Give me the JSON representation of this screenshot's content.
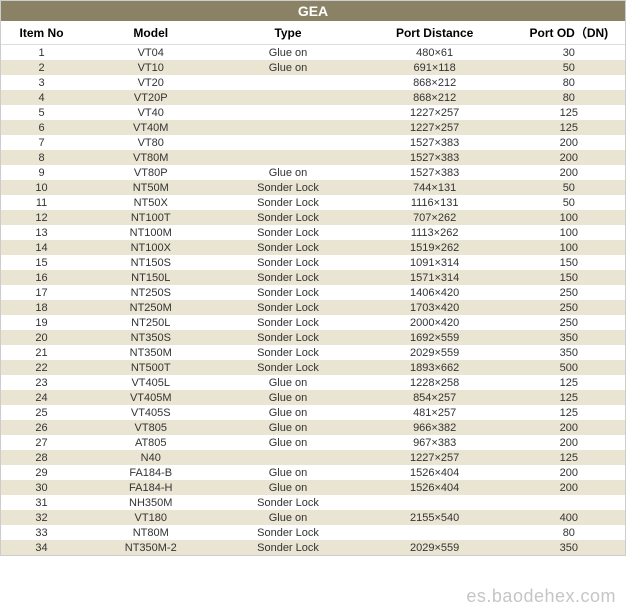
{
  "title": "GEA",
  "columns": [
    "Item No",
    "Model",
    "Type",
    "Port Distance",
    "Port OD（DN)"
  ],
  "col_widths": [
    "13%",
    "22%",
    "22%",
    "25%",
    "18%"
  ],
  "header_bg": "#8b8265",
  "row_even_bg": "#eae5d2",
  "row_odd_bg": "#ffffff",
  "font_family": "Arial",
  "title_fontsize": 14,
  "header_fontsize": 12,
  "cell_fontsize": 11,
  "watermark": "es.baodehex.com",
  "rows": [
    {
      "no": "1",
      "model": "VT04",
      "type": "Glue on",
      "dist": "480×61",
      "od": "30"
    },
    {
      "no": "2",
      "model": "VT10",
      "type": "Glue on",
      "dist": "691×118",
      "od": "50"
    },
    {
      "no": "3",
      "model": "VT20",
      "type": "",
      "dist": "868×212",
      "od": "80"
    },
    {
      "no": "4",
      "model": "VT20P",
      "type": "",
      "dist": "868×212",
      "od": "80"
    },
    {
      "no": "5",
      "model": "VT40",
      "type": "",
      "dist": "1227×257",
      "od": "125"
    },
    {
      "no": "6",
      "model": "VT40M",
      "type": "",
      "dist": "1227×257",
      "od": "125"
    },
    {
      "no": "7",
      "model": "VT80",
      "type": "",
      "dist": "1527×383",
      "od": "200"
    },
    {
      "no": "8",
      "model": "VT80M",
      "type": "",
      "dist": "1527×383",
      "od": "200"
    },
    {
      "no": "9",
      "model": "VT80P",
      "type": "Glue on",
      "dist": "1527×383",
      "od": "200"
    },
    {
      "no": "10",
      "model": "NT50M",
      "type": "Sonder Lock",
      "dist": "744×131",
      "od": "50"
    },
    {
      "no": "11",
      "model": "NT50X",
      "type": "Sonder Lock",
      "dist": "1116×131",
      "od": "50"
    },
    {
      "no": "12",
      "model": "NT100T",
      "type": "Sonder Lock",
      "dist": "707×262",
      "od": "100"
    },
    {
      "no": "13",
      "model": "NT100M",
      "type": "Sonder Lock",
      "dist": "1113×262",
      "od": "100"
    },
    {
      "no": "14",
      "model": "NT100X",
      "type": "Sonder Lock",
      "dist": "1519×262",
      "od": "100"
    },
    {
      "no": "15",
      "model": "NT150S",
      "type": "Sonder Lock",
      "dist": "1091×314",
      "od": "150"
    },
    {
      "no": "16",
      "model": "NT150L",
      "type": "Sonder Lock",
      "dist": "1571×314",
      "od": "150"
    },
    {
      "no": "17",
      "model": "NT250S",
      "type": "Sonder Lock",
      "dist": "1406×420",
      "od": "250"
    },
    {
      "no": "18",
      "model": "NT250M",
      "type": "Sonder Lock",
      "dist": "1703×420",
      "od": "250"
    },
    {
      "no": "19",
      "model": "NT250L",
      "type": "Sonder Lock",
      "dist": "2000×420",
      "od": "250"
    },
    {
      "no": "20",
      "model": "NT350S",
      "type": "Sonder Lock",
      "dist": "1692×559",
      "od": "350"
    },
    {
      "no": "21",
      "model": "NT350M",
      "type": "Sonder Lock",
      "dist": "2029×559",
      "od": "350"
    },
    {
      "no": "22",
      "model": "NT500T",
      "type": "Sonder Lock",
      "dist": "1893×662",
      "od": "500"
    },
    {
      "no": "23",
      "model": "VT405L",
      "type": "Glue on",
      "dist": "1228×258",
      "od": "125"
    },
    {
      "no": "24",
      "model": "VT405M",
      "type": "Glue on",
      "dist": "854×257",
      "od": "125"
    },
    {
      "no": "25",
      "model": "VT405S",
      "type": "Glue on",
      "dist": "481×257",
      "od": "125"
    },
    {
      "no": "26",
      "model": "VT805",
      "type": "Glue on",
      "dist": "966×382",
      "od": "200"
    },
    {
      "no": "27",
      "model": "AT805",
      "type": "Glue on",
      "dist": "967×383",
      "od": "200"
    },
    {
      "no": "28",
      "model": "N40",
      "type": "",
      "dist": "1227×257",
      "od": "125"
    },
    {
      "no": "29",
      "model": "FA184-B",
      "type": "Glue on",
      "dist": "1526×404",
      "od": "200"
    },
    {
      "no": "30",
      "model": "FA184-H",
      "type": "Glue on",
      "dist": "1526×404",
      "od": "200"
    },
    {
      "no": "31",
      "model": "NH350M",
      "type": "Sonder Lock",
      "dist": "",
      "od": ""
    },
    {
      "no": "32",
      "model": "VT180",
      "type": "Glue on",
      "dist": "2155×540",
      "od": "400"
    },
    {
      "no": "33",
      "model": "NT80M",
      "type": "Sonder Lock",
      "dist": "",
      "od": "80"
    },
    {
      "no": "34",
      "model": "NT350M-2",
      "type": "Sonder Lock",
      "dist": "2029×559",
      "od": "350"
    }
  ]
}
